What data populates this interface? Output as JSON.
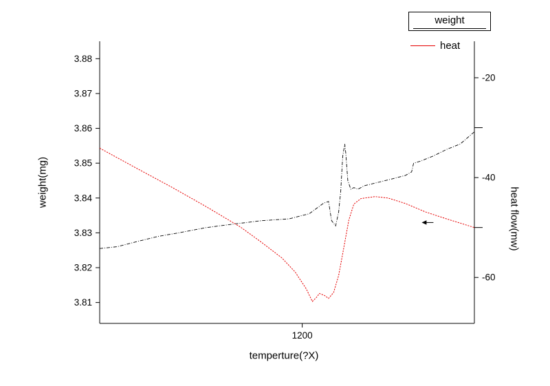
{
  "legend": {
    "items": [
      {
        "label": "weight",
        "color": "#000000"
      },
      {
        "label": "heat",
        "color": "#e60000"
      }
    ]
  },
  "chart_data": {
    "type": "line",
    "title": "",
    "xlabel": "temperture(?X)",
    "ylabel_left": "weight(mg)",
    "ylabel_right": "heat flow(mw)",
    "grid": false,
    "legend_position": "top-right",
    "x_range": [
      1000,
      1370
    ],
    "x_ticks": [
      {
        "v": 1200,
        "label": "1200"
      }
    ],
    "left_axis": {
      "range": [
        3.804,
        3.885
      ],
      "ticks": [
        {
          "v": 3.81,
          "label": "3.81"
        },
        {
          "v": 3.82,
          "label": "3.82"
        },
        {
          "v": 3.83,
          "label": "3.83"
        },
        {
          "v": 3.84,
          "label": "3.84"
        },
        {
          "v": 3.85,
          "label": "3.85"
        },
        {
          "v": 3.86,
          "label": "3.86"
        },
        {
          "v": 3.87,
          "label": "3.87"
        },
        {
          "v": 3.88,
          "label": "3.88"
        }
      ]
    },
    "right_axis": {
      "range": [
        -69.2,
        -12.7
      ],
      "ticks": [
        {
          "v": -20,
          "label": "-20"
        },
        {
          "v": -40,
          "label": "-40"
        },
        {
          "v": -60,
          "label": "-60"
        }
      ],
      "minor_ticks": [
        -30,
        -50
      ]
    },
    "series": [
      {
        "name": "weight",
        "axis": "left",
        "color": "#000000",
        "style": "dashdot",
        "width": 0.9,
        "points": [
          [
            1000,
            3.8255
          ],
          [
            1017,
            3.826
          ],
          [
            1037,
            3.8275
          ],
          [
            1058,
            3.829
          ],
          [
            1078,
            3.83
          ],
          [
            1105,
            3.8315
          ],
          [
            1132,
            3.8325
          ],
          [
            1160,
            3.8335
          ],
          [
            1187,
            3.834
          ],
          [
            1207,
            3.8355
          ],
          [
            1221,
            3.8385
          ],
          [
            1226,
            3.839
          ],
          [
            1229,
            3.8335
          ],
          [
            1233,
            3.832
          ],
          [
            1236,
            3.836
          ],
          [
            1238,
            3.842
          ],
          [
            1240,
            3.852
          ],
          [
            1242,
            3.8555
          ],
          [
            1243,
            3.853
          ],
          [
            1245,
            3.845
          ],
          [
            1248,
            3.8425
          ],
          [
            1251,
            3.843
          ],
          [
            1255,
            3.8425
          ],
          [
            1261,
            3.8435
          ],
          [
            1275,
            3.8445
          ],
          [
            1289,
            3.8455
          ],
          [
            1302,
            3.8465
          ],
          [
            1308,
            3.8475
          ],
          [
            1310,
            3.85
          ],
          [
            1316,
            3.8505
          ],
          [
            1329,
            3.852
          ],
          [
            1343,
            3.854
          ],
          [
            1356,
            3.8555
          ],
          [
            1370,
            3.859
          ]
        ]
      },
      {
        "name": "heat",
        "axis": "right",
        "color": "#e60000",
        "style": "dotted",
        "width": 1,
        "points": [
          [
            1000,
            -34.1
          ],
          [
            1037,
            -38.2
          ],
          [
            1071,
            -41.9
          ],
          [
            1105,
            -45.8
          ],
          [
            1139,
            -49.9
          ],
          [
            1160,
            -53.0
          ],
          [
            1180,
            -56.1
          ],
          [
            1193,
            -58.9
          ],
          [
            1204,
            -62.3
          ],
          [
            1210,
            -64.8
          ],
          [
            1214,
            -64.0
          ],
          [
            1217,
            -63.2
          ],
          [
            1222,
            -63.6
          ],
          [
            1226,
            -64.2
          ],
          [
            1231,
            -63.0
          ],
          [
            1236,
            -59.6
          ],
          [
            1241,
            -54.1
          ],
          [
            1246,
            -48.5
          ],
          [
            1251,
            -45.3
          ],
          [
            1258,
            -44.2
          ],
          [
            1272,
            -43.8
          ],
          [
            1285,
            -44.1
          ],
          [
            1302,
            -45.2
          ],
          [
            1322,
            -46.9
          ],
          [
            1343,
            -48.3
          ],
          [
            1370,
            -50.0
          ]
        ]
      }
    ],
    "annotation": {
      "type": "arrow-left",
      "x": 1318,
      "y": -49.0,
      "axis": "right"
    }
  }
}
